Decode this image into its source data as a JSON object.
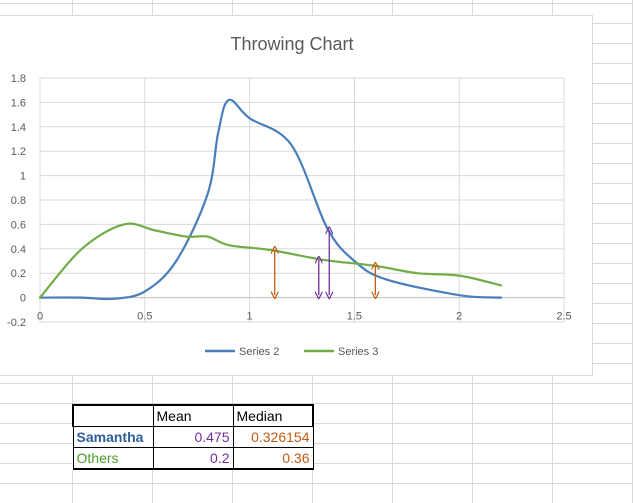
{
  "colors": {
    "series2": "#4a7ebb",
    "series3": "#70ad47",
    "purple": "#7030a0",
    "orange": "#c55a11",
    "grid": "#d9d9d9",
    "tick_text": "#595959"
  },
  "chart_data": {
    "type": "line",
    "title": "Throwing Chart",
    "xlabel": "",
    "ylabel": "",
    "xlim": [
      0,
      2.5
    ],
    "ylim": [
      -0.2,
      1.8
    ],
    "x_ticks": [
      "0",
      "0.5",
      "1",
      "1.5",
      "2",
      "2.5"
    ],
    "y_ticks": [
      "-0.2",
      "0",
      "0.2",
      "0.4",
      "0.6",
      "0.8",
      "1",
      "1.2",
      "1.4",
      "1.6",
      "1.8"
    ],
    "grid": true,
    "legend_position": "bottom",
    "series": [
      {
        "name": "Series 2",
        "color": "#4a7ebb",
        "points": [
          [
            0,
            0
          ],
          [
            0.2,
            0
          ],
          [
            0.35,
            -0.01
          ],
          [
            0.5,
            0.05
          ],
          [
            0.65,
            0.3
          ],
          [
            0.8,
            0.85
          ],
          [
            0.85,
            1.35
          ],
          [
            0.9,
            1.62
          ],
          [
            1.0,
            1.47
          ],
          [
            1.2,
            1.25
          ],
          [
            1.37,
            0.57
          ],
          [
            1.5,
            0.3
          ],
          [
            1.65,
            0.15
          ],
          [
            2.0,
            0.02
          ],
          [
            2.2,
            0
          ]
        ]
      },
      {
        "name": "Series 3",
        "color": "#70ad47",
        "points": [
          [
            0,
            0
          ],
          [
            0.2,
            0.4
          ],
          [
            0.4,
            0.6
          ],
          [
            0.55,
            0.55
          ],
          [
            0.7,
            0.5
          ],
          [
            0.8,
            0.5
          ],
          [
            0.9,
            0.43
          ],
          [
            1.1,
            0.39
          ],
          [
            1.35,
            0.31
          ],
          [
            1.6,
            0.26
          ],
          [
            1.8,
            0.2
          ],
          [
            2.0,
            0.18
          ],
          [
            2.2,
            0.1
          ]
        ]
      }
    ],
    "annotations": [
      {
        "type": "double-arrow",
        "color": "#c55a11",
        "x": 1.12,
        "y_from": 0.02,
        "y_to": 0.39
      },
      {
        "type": "double-arrow",
        "color": "#7030a0",
        "x": 1.33,
        "y_from": 0.02,
        "y_to": 0.31
      },
      {
        "type": "double-arrow",
        "color": "#7030a0",
        "x": 1.38,
        "y_from": 0.02,
        "y_to": 0.55
      },
      {
        "type": "double-arrow",
        "color": "#c55a11",
        "x": 1.6,
        "y_from": 0.02,
        "y_to": 0.26
      }
    ]
  },
  "table": {
    "headers": [
      "",
      "Mean",
      "Median"
    ],
    "rows": [
      {
        "label": "Samantha",
        "mean": "0.475",
        "median": "0.326154"
      },
      {
        "label": "Others",
        "mean": "0.2",
        "median": "0.36"
      }
    ]
  }
}
